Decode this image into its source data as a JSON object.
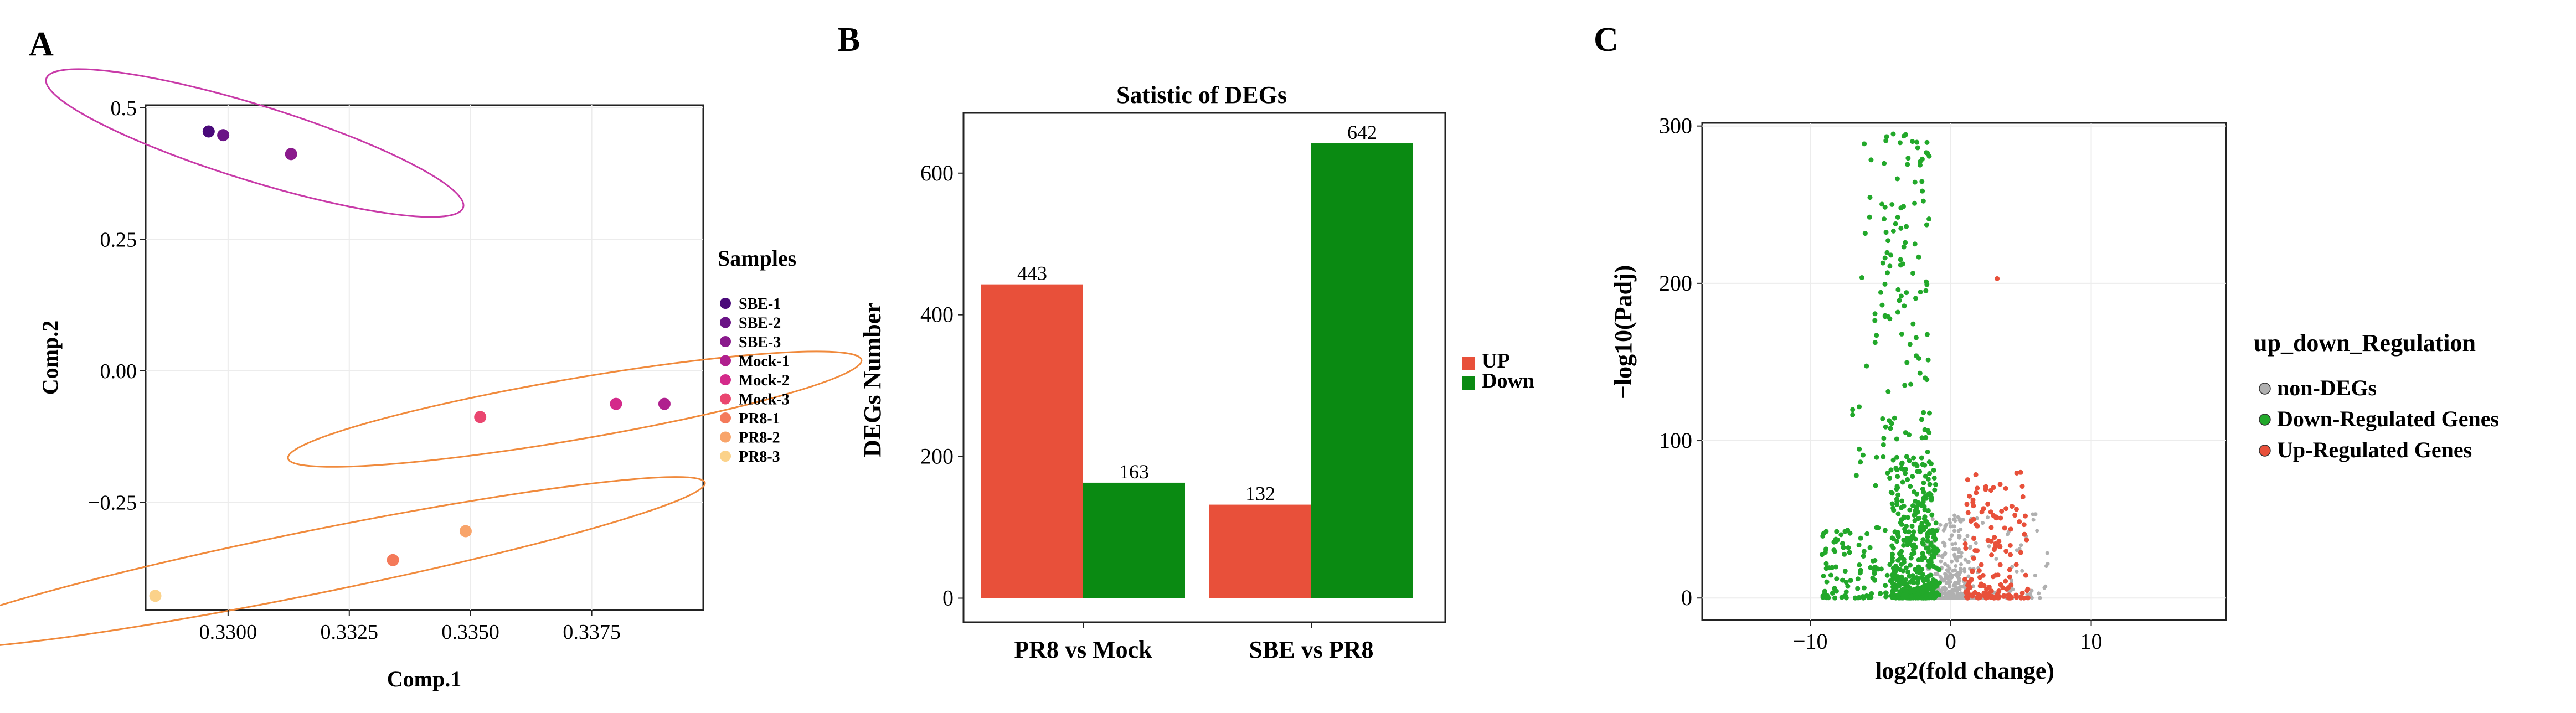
{
  "panels": {
    "a": "A",
    "b": "B",
    "c": "C"
  },
  "chart_data": [
    {
      "type": "scatter",
      "xlabel": "Comp.1",
      "ylabel": "Comp.2",
      "xlim": [
        0.3283,
        0.3398
      ],
      "ylim": [
        -0.455,
        0.505
      ],
      "xticks": [
        0.33,
        0.3325,
        0.335,
        0.3375
      ],
      "xtick_labels": [
        "0.3300",
        "0.3325",
        "0.3350",
        "0.3375"
      ],
      "yticks": [
        0.5,
        0.25,
        0.0,
        -0.25
      ],
      "ytick_labels": [
        "0.5",
        "0.25",
        "0.00",
        "−0.25"
      ],
      "legend_title": "Samples",
      "points": [
        {
          "name": "SBE-1",
          "x": 0.3296,
          "y": 0.455,
          "color": "#4a0a7a"
        },
        {
          "name": "SBE-2",
          "x": 0.3299,
          "y": 0.448,
          "color": "#6a1386"
        },
        {
          "name": "SBE-3",
          "x": 0.3313,
          "y": 0.412,
          "color": "#8a1a8c"
        },
        {
          "name": "Mock-1",
          "x": 0.339,
          "y": -0.063,
          "color": "#b0208e"
        },
        {
          "name": "Mock-2",
          "x": 0.338,
          "y": -0.063,
          "color": "#d42a8a"
        },
        {
          "name": "Mock-3",
          "x": 0.3352,
          "y": -0.088,
          "color": "#ea4670"
        },
        {
          "name": "PR8-1",
          "x": 0.3334,
          "y": -0.36,
          "color": "#f47a5a"
        },
        {
          "name": "PR8-2",
          "x": 0.3349,
          "y": -0.305,
          "color": "#f8a46a"
        },
        {
          "name": "PR8-3",
          "x": 0.3285,
          "y": -0.428,
          "color": "#fbd28a"
        }
      ],
      "ellipses": [
        {
          "cx": 0.33055,
          "cy": 0.433,
          "rx": 0.0045,
          "ry": 0.072,
          "angle": 0.3,
          "color": "#c83aa8"
        },
        {
          "cx": 0.33715,
          "cy": -0.073,
          "rx": 0.006,
          "ry": 0.058,
          "angle": -0.17,
          "color": "#f08a3c"
        },
        {
          "cx": 0.3317,
          "cy": -0.365,
          "rx": 0.0083,
          "ry": 0.06,
          "angle": -0.2,
          "color": "#f08a3c"
        }
      ]
    },
    {
      "type": "bar",
      "title": "Satistic of DEGs",
      "xlabel": "",
      "ylabel": "DEGs Number",
      "ylim": [
        -34,
        685
      ],
      "yticks": [
        0,
        200,
        400,
        600
      ],
      "categories": [
        "PR8 vs Mock",
        "SBE vs PR8"
      ],
      "series": [
        {
          "name": "UP",
          "color": "#e8503a",
          "values": [
            443,
            132
          ]
        },
        {
          "name": "Down",
          "color": "#0a8a12",
          "values": [
            163,
            642
          ]
        }
      ]
    },
    {
      "type": "scatter",
      "subtype": "volcano",
      "xlabel": "log2(fold change)",
      "ylabel": "−log10(Padj)",
      "xlim": [
        -17.7,
        19.6
      ],
      "ylim": [
        -14,
        302
      ],
      "xticks": [
        -10,
        0,
        10
      ],
      "xtick_labels": [
        "−10",
        "0",
        "10"
      ],
      "yticks": [
        0,
        100,
        200,
        300
      ],
      "legend_title": "up_down_Regulation",
      "legend": [
        {
          "name": "non-DEGs",
          "color": "#b0b0b0"
        },
        {
          "name": "Down-Regulated Genes",
          "color": "#22a82a"
        },
        {
          "name": "Up-Regulated Genes",
          "color": "#e8503a"
        }
      ]
    }
  ]
}
